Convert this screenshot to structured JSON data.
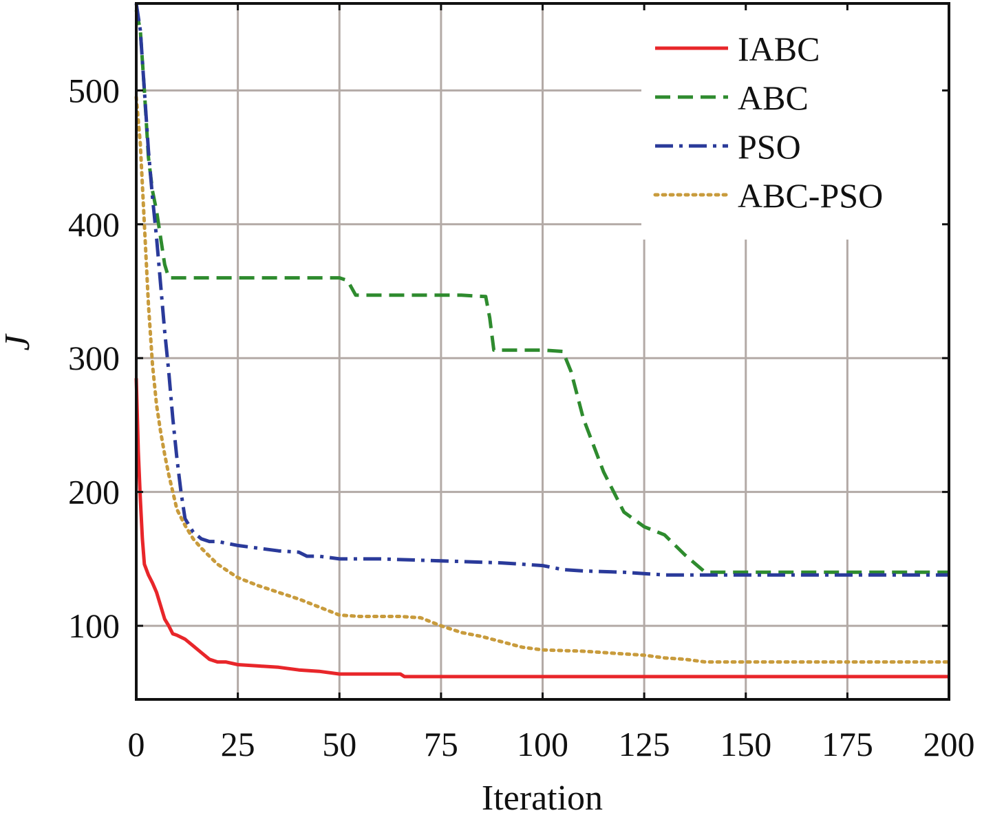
{
  "chart_data": {
    "type": "line",
    "title": "",
    "xlabel": "Iteration",
    "ylabel": "J",
    "xlim": [
      0,
      200
    ],
    "ylim": [
      45,
      565
    ],
    "xticks": [
      0,
      25,
      50,
      75,
      100,
      125,
      150,
      175,
      200
    ],
    "yticks": [
      100,
      200,
      300,
      400,
      500
    ],
    "grid": true,
    "legend_position": "top-right",
    "series": [
      {
        "name": "IABC",
        "color": "#e8262a",
        "style": "solid",
        "x": [
          0,
          0.5,
          1,
          1.5,
          2,
          3,
          4,
          5,
          6,
          7,
          8,
          9,
          10,
          12,
          14,
          16,
          18,
          20,
          22,
          25,
          30,
          35,
          40,
          45,
          50,
          55,
          60,
          65,
          66,
          70,
          80,
          100,
          150,
          200
        ],
        "y": [
          285,
          230,
          195,
          165,
          146,
          138,
          132,
          125,
          115,
          105,
          100,
          94,
          93,
          90,
          85,
          80,
          75,
          73,
          73,
          71,
          70,
          69,
          67,
          66,
          64,
          64,
          64,
          64,
          62,
          62,
          62,
          62,
          62,
          62
        ]
      },
      {
        "name": "ABC",
        "color": "#2e8b2e",
        "style": "dashed",
        "x": [
          0,
          1,
          2,
          3,
          4,
          5,
          6,
          7,
          8,
          9,
          20,
          50,
          52,
          54,
          60,
          80,
          86,
          87,
          88,
          90,
          100,
          105,
          107,
          110,
          115,
          120,
          125,
          130,
          135,
          140,
          145,
          150,
          175,
          200
        ],
        "y": [
          560,
          545,
          500,
          450,
          425,
          410,
          390,
          370,
          360,
          360,
          360,
          360,
          358,
          347,
          347,
          347,
          346,
          330,
          306,
          306,
          306,
          305,
          290,
          255,
          215,
          185,
          174,
          168,
          153,
          140,
          140,
          140,
          140,
          140
        ]
      },
      {
        "name": "PSO",
        "color": "#2a3a9a",
        "style": "dashdot",
        "x": [
          0,
          1,
          2,
          3,
          4,
          5,
          6,
          7,
          8,
          9,
          10,
          11,
          12,
          14,
          16,
          18,
          20,
          25,
          30,
          35,
          40,
          42,
          45,
          50,
          60,
          70,
          80,
          90,
          100,
          105,
          110,
          120,
          130,
          140,
          150,
          175,
          200
        ],
        "y": [
          565,
          545,
          500,
          455,
          420,
          390,
          355,
          320,
          290,
          255,
          225,
          200,
          180,
          170,
          165,
          163,
          163,
          160,
          158,
          156,
          155,
          152,
          152,
          150,
          150,
          149,
          148,
          147,
          145,
          142,
          141,
          140,
          138,
          138,
          138,
          138,
          138
        ]
      },
      {
        "name": "ABC-PSO",
        "color": "#c89b3c",
        "style": "dotted",
        "x": [
          0,
          1,
          2,
          3,
          4,
          5,
          6,
          7,
          8,
          9,
          10,
          12,
          14,
          16,
          18,
          20,
          25,
          30,
          35,
          40,
          45,
          50,
          55,
          60,
          65,
          70,
          75,
          80,
          85,
          90,
          95,
          100,
          110,
          120,
          125,
          130,
          135,
          140,
          150,
          175,
          200
        ],
        "y": [
          495,
          460,
          400,
          340,
          295,
          265,
          245,
          228,
          213,
          200,
          187,
          175,
          165,
          158,
          152,
          146,
          136,
          130,
          125,
          120,
          114,
          108,
          107,
          107,
          107,
          106,
          100,
          95,
          92,
          88,
          84,
          82,
          81,
          79,
          78,
          76,
          75,
          73,
          73,
          73,
          73
        ]
      }
    ]
  }
}
